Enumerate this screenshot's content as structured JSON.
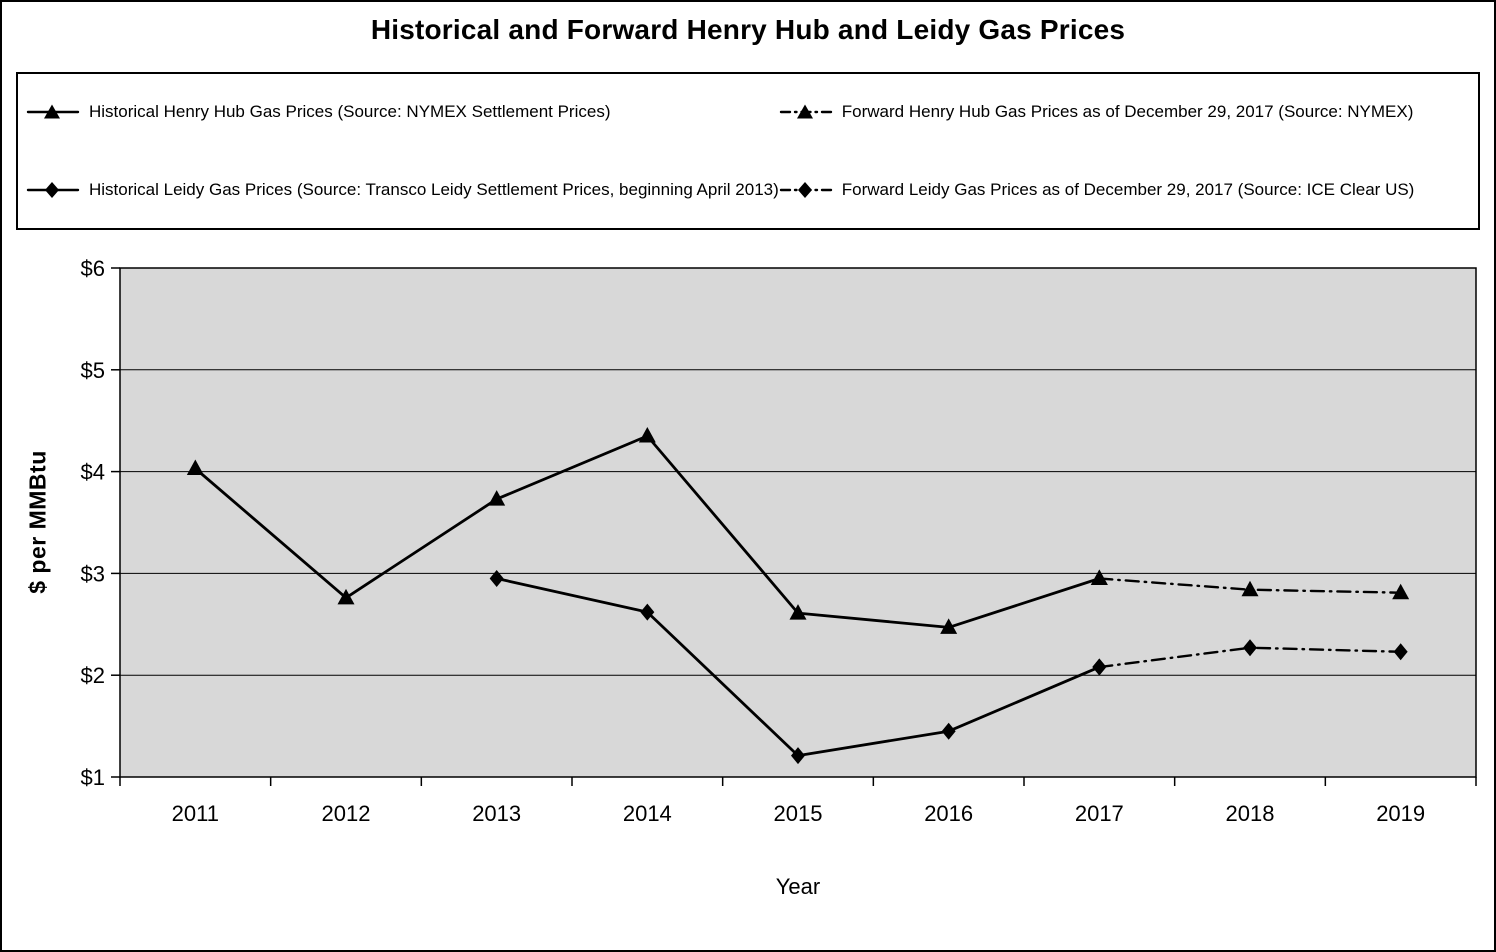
{
  "chart_data": {
    "type": "line",
    "title": "Historical and Forward Henry Hub and Leidy Gas Prices",
    "xlabel": "Year",
    "ylabel": "$ per MMBtu",
    "x": [
      "2011",
      "2012",
      "2013",
      "2014",
      "2015",
      "2016",
      "2017",
      "2018",
      "2019"
    ],
    "ylim": [
      1,
      6
    ],
    "ytick_labels": [
      "$1",
      "$2",
      "$3",
      "$4",
      "$5",
      "$6"
    ],
    "grid": true,
    "plot_background": "#d8d8d8",
    "legend": {
      "position": "top",
      "items": [
        {
          "label": "Historical Henry Hub Gas Prices (Source: NYMEX Settlement Prices)",
          "marker": "triangle",
          "line": "solid"
        },
        {
          "label": "Forward Henry Hub Gas Prices as of December 29, 2017 (Source: NYMEX)",
          "marker": "triangle",
          "line": "dashdot"
        },
        {
          "label": "Historical Leidy Gas Prices (Source: Transco Leidy Settlement Prices, beginning April 2013)",
          "marker": "diamond",
          "line": "solid"
        },
        {
          "label": "Forward Leidy Gas Prices as of December 29, 2017 (Source: ICE Clear US)",
          "marker": "diamond",
          "line": "dashdot"
        }
      ]
    },
    "series": [
      {
        "name": "Historical Henry Hub Gas Prices",
        "marker": "triangle",
        "line": "solid",
        "values": [
          4.03,
          2.76,
          3.73,
          4.35,
          2.61,
          2.47,
          2.95,
          null,
          null
        ]
      },
      {
        "name": "Forward Henry Hub Gas Prices as of December 29, 2017",
        "marker": "triangle",
        "line": "dashdot",
        "values": [
          null,
          null,
          null,
          null,
          null,
          null,
          2.95,
          2.84,
          2.81
        ]
      },
      {
        "name": "Historical Leidy Gas Prices",
        "marker": "diamond",
        "line": "solid",
        "values": [
          null,
          null,
          2.95,
          2.62,
          1.21,
          1.45,
          2.08,
          null,
          null
        ]
      },
      {
        "name": "Forward Leidy Gas Prices as of December 29, 2017",
        "marker": "diamond",
        "line": "dashdot",
        "values": [
          null,
          null,
          null,
          null,
          null,
          null,
          2.08,
          2.27,
          2.23
        ]
      }
    ]
  },
  "colors": {
    "series": "#000000",
    "plot_background": "#d8d8d8",
    "grid": "#000000",
    "frame": "#000000"
  }
}
